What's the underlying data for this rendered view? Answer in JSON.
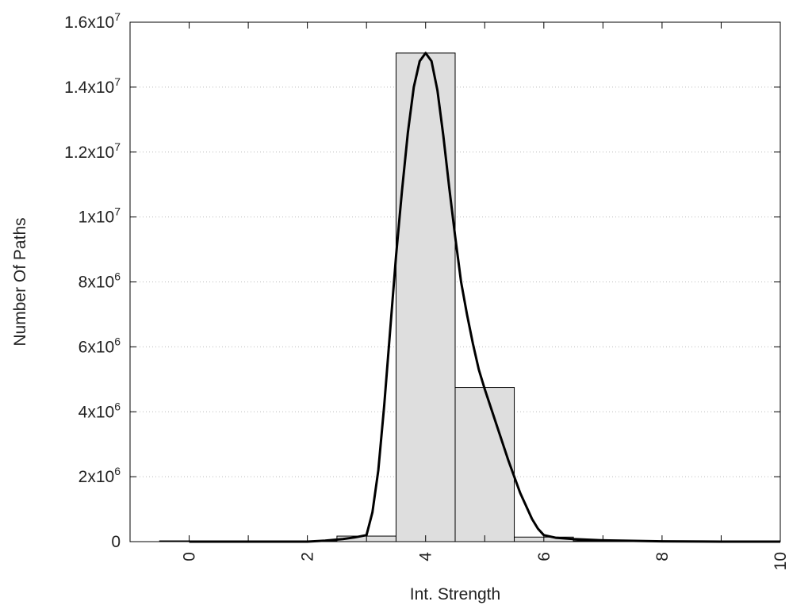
{
  "chart_data": {
    "type": "bar",
    "xlabel": "Int. Strength",
    "ylabel": "Number Of Paths",
    "xlim": [
      -1,
      10
    ],
    "ylim": [
      0,
      16000000
    ],
    "grid": "horizontal dotted",
    "x_ticks": [
      0,
      2,
      4,
      6,
      8,
      10
    ],
    "y_ticks": [
      {
        "value": 0,
        "mantissa": "0",
        "exp": ""
      },
      {
        "value": 2000000,
        "mantissa": "2x10",
        "exp": "6"
      },
      {
        "value": 4000000,
        "mantissa": "4x10",
        "exp": "6"
      },
      {
        "value": 6000000,
        "mantissa": "6x10",
        "exp": "6"
      },
      {
        "value": 8000000,
        "mantissa": "8x10",
        "exp": "6"
      },
      {
        "value": 10000000,
        "mantissa": "1x10",
        "exp": "7"
      },
      {
        "value": 12000000,
        "mantissa": "1.2x10",
        "exp": "7"
      },
      {
        "value": 14000000,
        "mantissa": "1.4x10",
        "exp": "7"
      },
      {
        "value": 16000000,
        "mantissa": "1.6x10",
        "exp": "7"
      }
    ],
    "bars": [
      {
        "x0": -0.5,
        "x1": 0.5,
        "value": 0
      },
      {
        "x0": 0.5,
        "x1": 1.5,
        "value": 0
      },
      {
        "x0": 1.5,
        "x1": 2.5,
        "value": 0
      },
      {
        "x0": 2.5,
        "x1": 3.5,
        "value": 170000
      },
      {
        "x0": 3.5,
        "x1": 4.5,
        "value": 15050000
      },
      {
        "x0": 4.5,
        "x1": 5.5,
        "value": 4750000
      },
      {
        "x0": 5.5,
        "x1": 6.5,
        "value": 140000
      },
      {
        "x0": 6.5,
        "x1": 7.5,
        "value": 0
      },
      {
        "x0": 7.5,
        "x1": 8.5,
        "value": 0
      }
    ],
    "curve": {
      "x": [
        0,
        1,
        2,
        2.3,
        2.6,
        2.8,
        3.0,
        3.1,
        3.2,
        3.3,
        3.4,
        3.5,
        3.6,
        3.7,
        3.8,
        3.9,
        4.0,
        4.1,
        4.2,
        4.3,
        4.4,
        4.5,
        4.6,
        4.7,
        4.8,
        4.9,
        5.0,
        5.2,
        5.4,
        5.6,
        5.8,
        5.9,
        6.0,
        6.2,
        6.5,
        7.0,
        8.0,
        9.0,
        10.0
      ],
      "y": [
        0,
        0,
        0,
        30000,
        80000,
        130000,
        200000,
        900000,
        2200000,
        4200000,
        6500000,
        8800000,
        10800000,
        12600000,
        14000000,
        14800000,
        15050000,
        14800000,
        13900000,
        12500000,
        10900000,
        9400000,
        8000000,
        7000000,
        6100000,
        5300000,
        4700000,
        3600000,
        2500000,
        1500000,
        700000,
        400000,
        200000,
        120000,
        80000,
        40000,
        10000,
        0,
        0
      ]
    }
  }
}
